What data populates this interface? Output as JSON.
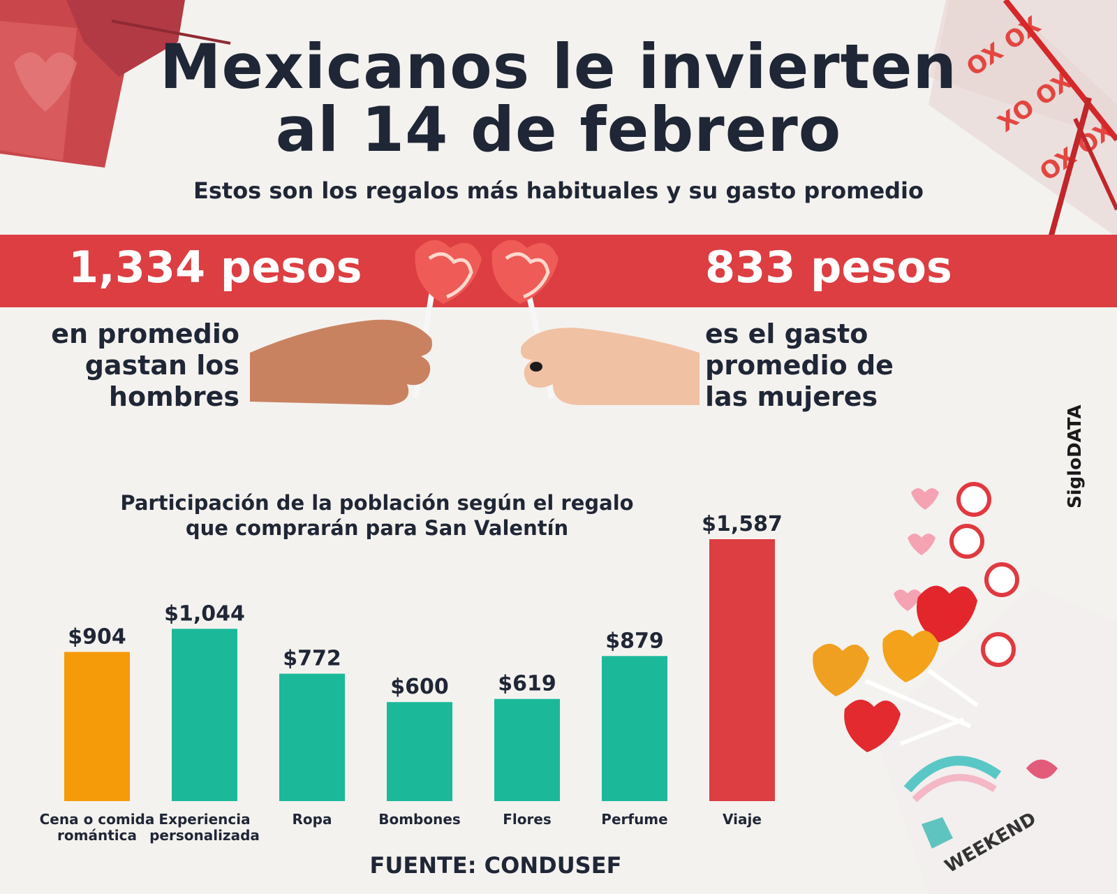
{
  "header": {
    "title_line1": "Mexicanos le invierten",
    "title_line2": "al 14 de febrero",
    "subtitle": "Estos son los regalos más habituales y su gasto promedio"
  },
  "stats": {
    "men_amount": "1,334 pesos",
    "men_caption": [
      "en promedio",
      "gastan los",
      "hombres"
    ],
    "women_amount": "833 pesos",
    "women_caption": [
      "es el gasto",
      "promedio de",
      "las mujeres"
    ]
  },
  "brand": "SigloDATA",
  "source": "FUENTE: CONDUSEF",
  "colors": {
    "accent_red": "#dc3e42",
    "teal": "#1bb99a",
    "orange": "#f59b0a",
    "text_dark": "#1f2635"
  },
  "chart_data": {
    "type": "bar",
    "title": "Participación de la población según el regalo que comprarán para San Valentín",
    "title_lines": [
      "Participación de la población según el regalo",
      "que comprarán para San Valentín"
    ],
    "categories": [
      [
        "Cena o comida",
        "romántica"
      ],
      [
        "Experiencia",
        "personalizada"
      ],
      [
        "Ropa"
      ],
      [
        "Bombones"
      ],
      [
        "Flores"
      ],
      [
        "Perfume"
      ],
      [
        "Viaje"
      ]
    ],
    "values": [
      904,
      1044,
      772,
      600,
      619,
      879,
      1587
    ],
    "value_labels": [
      "$904",
      "$1,044",
      "$772",
      "$600",
      "$619",
      "$879",
      "$1,587"
    ],
    "bar_colors": [
      "#f59b0a",
      "#1bb99a",
      "#1bb99a",
      "#1bb99a",
      "#1bb99a",
      "#1bb99a",
      "#dc3e42"
    ],
    "ylim": [
      0,
      1587
    ],
    "grid": false
  }
}
